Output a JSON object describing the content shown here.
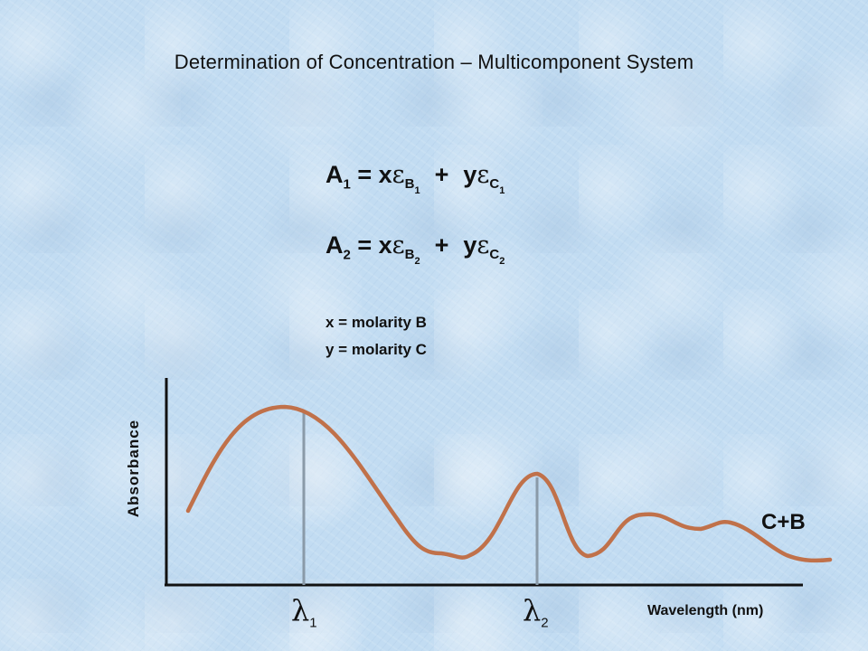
{
  "title": "Determination of Concentration – Multicomponent System",
  "equations": {
    "eq1": {
      "lhs": "A",
      "lhs_sub": "1",
      "eq": " = x",
      "eps": "ε",
      "b": "B",
      "b_sub": "1",
      "plus": "+",
      "y": "y",
      "c": "C",
      "c_sub": "1"
    },
    "eq2": {
      "lhs": "A",
      "lhs_sub": "2",
      "eq": " = x",
      "eps": "ε",
      "b": "B",
      "b_sub": "2",
      "plus": "+",
      "y": "y",
      "c": "C",
      "c_sub": "2"
    }
  },
  "definitions": {
    "x": "x = molarity B",
    "y": "y = molarity C"
  },
  "axes": {
    "ylabel": "Absorbance",
    "xlabel": "Wavelength (nm)"
  },
  "series_label": "C+B",
  "markers": [
    {
      "symbol": "λ",
      "sub": "1"
    },
    {
      "symbol": "λ",
      "sub": "2"
    }
  ],
  "colors": {
    "curve": "#c0714a",
    "axis": "#111111",
    "marker_line": "#8a9aa8"
  }
}
